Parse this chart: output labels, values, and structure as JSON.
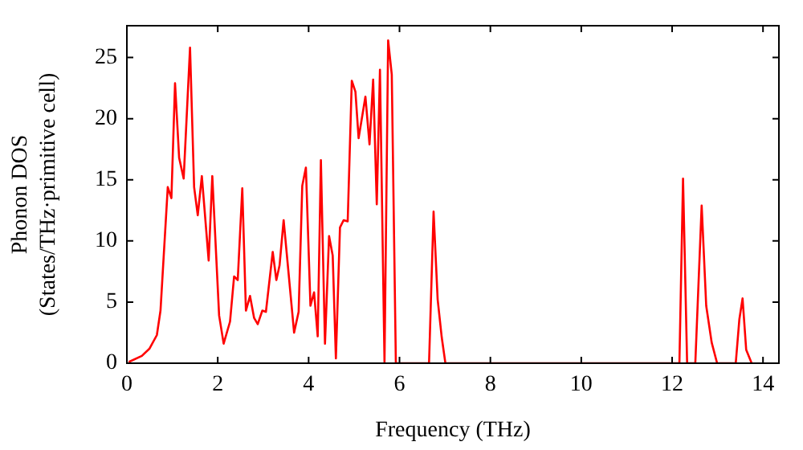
{
  "chart_data": {
    "type": "line",
    "xlabel": "Frequency (THz)",
    "ylabel": "Phonon DOS\n(States/THz·primitive cell)",
    "xlim": [
      0,
      14.35
    ],
    "ylim": [
      0,
      27.6
    ],
    "xticks": [
      0,
      2,
      4,
      6,
      8,
      10,
      12,
      14
    ],
    "yticks": [
      0,
      5,
      10,
      15,
      20,
      25
    ],
    "grid": false,
    "legend": false,
    "series": [
      {
        "color": "#ff0000",
        "x": [
          0.04,
          0.33,
          0.5,
          0.66,
          0.74,
          0.9,
          0.98,
          1.06,
          1.15,
          1.25,
          1.39,
          1.48,
          1.56,
          1.65,
          1.8,
          1.88,
          2.03,
          2.13,
          2.27,
          2.36,
          2.44,
          2.54,
          2.62,
          2.71,
          2.8,
          2.88,
          2.98,
          3.06,
          3.21,
          3.29,
          3.36,
          3.45,
          3.68,
          3.78,
          3.86,
          3.94,
          4.04,
          4.12,
          4.2,
          4.27,
          4.36,
          4.45,
          4.53,
          4.6,
          4.69,
          4.77,
          4.86,
          4.95,
          5.03,
          5.1,
          5.25,
          5.34,
          5.42,
          5.5,
          5.57,
          5.67,
          5.75,
          5.83,
          5.92,
          6.65,
          6.75,
          6.84,
          6.93,
          7.01,
          12.16,
          12.24,
          12.33,
          12.51,
          12.65,
          12.75,
          12.87,
          12.99,
          13.4,
          13.48,
          13.55,
          13.63,
          13.75
        ],
        "values": [
          0.1,
          0.6,
          1.2,
          2.3,
          4.3,
          14.4,
          13.5,
          22.9,
          16.8,
          15.1,
          25.8,
          14.4,
          12.1,
          15.3,
          8.4,
          15.3,
          3.9,
          1.6,
          3.4,
          7.1,
          6.8,
          14.3,
          4.3,
          5.5,
          3.7,
          3.2,
          4.3,
          4.2,
          9.1,
          6.8,
          8.0,
          11.7,
          2.5,
          4.2,
          14.5,
          16.0,
          4.7,
          5.8,
          2.2,
          16.6,
          1.6,
          10.4,
          8.8,
          0.4,
          11.1,
          11.7,
          11.6,
          23.1,
          22.2,
          18.4,
          21.8,
          17.9,
          23.2,
          13.0,
          24.0,
          0.1,
          26.4,
          23.6,
          0,
          0,
          12.4,
          5.2,
          2.1,
          0,
          0,
          15.1,
          0,
          0,
          12.9,
          4.7,
          1.7,
          0,
          0,
          3.6,
          5.3,
          1.1,
          0
        ]
      }
    ]
  }
}
